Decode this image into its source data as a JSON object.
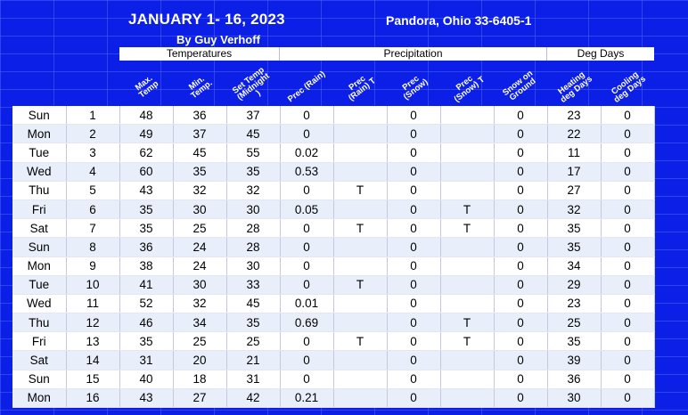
{
  "header": {
    "title": "JANUARY 1- 16, 2023",
    "author": "By Guy Verhoff",
    "station": "Pandora, Ohio 33-6405-1"
  },
  "groups": [
    "Temperatures",
    "Precipitation",
    "Deg Days"
  ],
  "columns": [
    [
      "Max.",
      "Temp"
    ],
    [
      "Min.",
      "Temp."
    ],
    [
      "Set Temp",
      "(Midnight",
      ")"
    ],
    [
      "Prec (Rain)"
    ],
    [
      "Prec",
      "(Rain) T"
    ],
    [
      "Prec",
      "(Snow)"
    ],
    [
      "Prec",
      "(Snow) T"
    ],
    [
      "Snow on",
      "Ground"
    ],
    [
      "Heating",
      "deg Days"
    ],
    [
      "Cooling",
      "deg Days"
    ]
  ],
  "rows": [
    [
      "Sun",
      "1",
      "48",
      "36",
      "37",
      "0",
      "",
      "0",
      "",
      "0",
      "23",
      "0"
    ],
    [
      "Mon",
      "2",
      "49",
      "37",
      "45",
      "0",
      "",
      "0",
      "",
      "0",
      "22",
      "0"
    ],
    [
      "Tue",
      "3",
      "62",
      "45",
      "55",
      "0.02",
      "",
      "0",
      "",
      "0",
      "11",
      "0"
    ],
    [
      "Wed",
      "4",
      "60",
      "35",
      "35",
      "0.53",
      "",
      "0",
      "",
      "0",
      "17",
      "0"
    ],
    [
      "Thu",
      "5",
      "43",
      "32",
      "32",
      "0",
      "T",
      "0",
      "",
      "0",
      "27",
      "0"
    ],
    [
      "Fri",
      "6",
      "35",
      "30",
      "30",
      "0.05",
      "",
      "0",
      "T",
      "0",
      "32",
      "0"
    ],
    [
      "Sat",
      "7",
      "35",
      "25",
      "28",
      "0",
      "T",
      "0",
      "T",
      "0",
      "35",
      "0"
    ],
    [
      "Sun",
      "8",
      "36",
      "24",
      "28",
      "0",
      "",
      "0",
      "",
      "0",
      "35",
      "0"
    ],
    [
      "Mon",
      "9",
      "38",
      "24",
      "30",
      "0",
      "",
      "0",
      "",
      "0",
      "34",
      "0"
    ],
    [
      "Tue",
      "10",
      "41",
      "30",
      "33",
      "0",
      "T",
      "0",
      "",
      "0",
      "29",
      "0"
    ],
    [
      "Wed",
      "11",
      "52",
      "32",
      "45",
      "0.01",
      "",
      "0",
      "",
      "0",
      "23",
      "0"
    ],
    [
      "Thu",
      "12",
      "46",
      "34",
      "35",
      "0.69",
      "",
      "0",
      "T",
      "0",
      "25",
      "0"
    ],
    [
      "Fri",
      "13",
      "35",
      "25",
      "25",
      "0",
      "T",
      "0",
      "T",
      "0",
      "35",
      "0"
    ],
    [
      "Sat",
      "14",
      "31",
      "20",
      "21",
      "0",
      "",
      "0",
      "",
      "0",
      "39",
      "0"
    ],
    [
      "Sun",
      "15",
      "40",
      "18",
      "31",
      "0",
      "",
      "0",
      "",
      "0",
      "36",
      "0"
    ],
    [
      "Mon",
      "16",
      "43",
      "27",
      "42",
      "0.21",
      "",
      "0",
      "",
      "0",
      "30",
      "0"
    ]
  ],
  "colors": {
    "background": "#0b1fe6",
    "row_alt": "#e9effa",
    "header_text": "#ffffff"
  }
}
